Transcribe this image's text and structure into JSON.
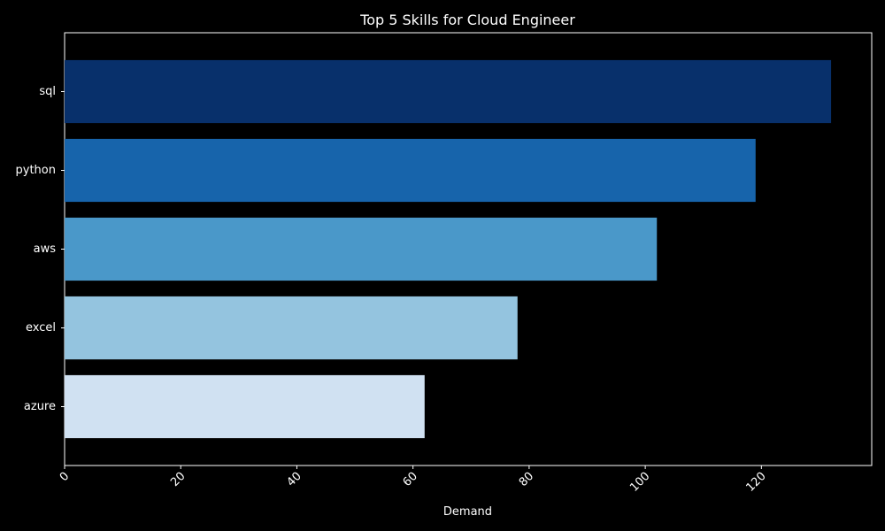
{
  "chart_data": {
    "type": "bar",
    "orientation": "horizontal",
    "title": "Top 5 Skills for Cloud Engineer",
    "xlabel": "Demand",
    "ylabel": "",
    "categories": [
      "sql",
      "python",
      "aws",
      "excel",
      "azure"
    ],
    "values": [
      132,
      119,
      102,
      78,
      62
    ],
    "xlim": [
      0,
      139
    ],
    "xticks": [
      0,
      20,
      40,
      60,
      80,
      100,
      120
    ],
    "colors": [
      "#08306b",
      "#1764ab",
      "#4a98c9",
      "#94c4df",
      "#d0e1f2"
    ],
    "grid": false,
    "legend": "none"
  },
  "theme": {
    "background": "#000000",
    "foreground": "#ffffff"
  }
}
